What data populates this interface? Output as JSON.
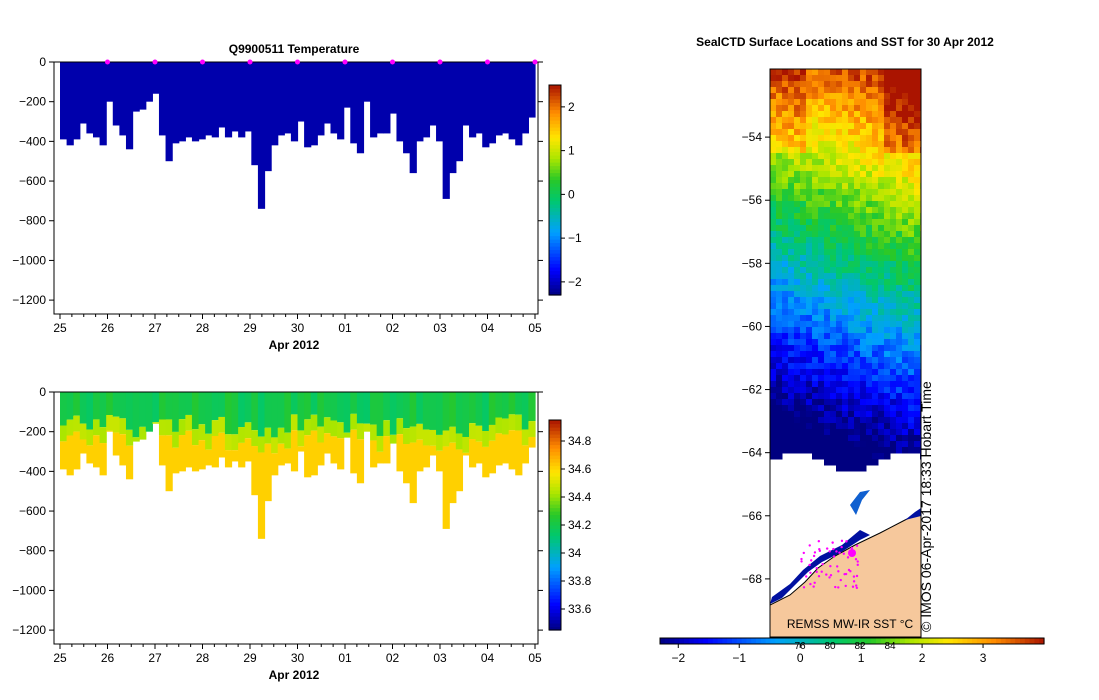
{
  "chart_data": [
    {
      "type": "profile-section",
      "id": "temperature",
      "title": "Q9900511  Temperature",
      "xlabel": "Apr 2012",
      "ylabel": "",
      "x_tick_labels": [
        "25",
        "26",
        "27",
        "28",
        "29",
        "30",
        "01",
        "02",
        "03",
        "04",
        "05"
      ],
      "x_range_days": [
        0,
        10
      ],
      "ylim": [
        -1270,
        0
      ],
      "y_ticks": [
        0,
        -200,
        -400,
        -600,
        -800,
        -1000,
        -1200
      ],
      "grid": false,
      "colorbar": {
        "range": [
          -2.3,
          2.5
        ],
        "ticks": [
          -2,
          -1,
          0,
          1,
          2
        ]
      },
      "surface_marker_days": [
        1,
        2,
        3,
        4,
        5,
        6,
        7,
        8,
        9,
        10
      ],
      "surface_marker_color": "#ff00ff",
      "profile_depths": [
        390,
        420,
        390,
        310,
        360,
        380,
        420,
        200,
        320,
        370,
        440,
        250,
        240,
        200,
        160,
        370,
        500,
        410,
        400,
        380,
        400,
        390,
        370,
        380,
        330,
        380,
        350,
        380,
        350,
        520,
        740,
        550,
        420,
        370,
        360,
        400,
        300,
        430,
        420,
        370,
        310,
        360,
        390,
        230,
        410,
        460,
        200,
        380,
        360,
        360,
        260,
        400,
        460,
        560,
        400,
        380,
        320,
        400,
        690,
        560,
        500,
        320,
        380,
        360,
        430,
        410,
        370,
        360,
        390,
        420,
        360,
        280
      ],
      "deep_value": -2.2,
      "surface_value": -2.1
    },
    {
      "type": "profile-section",
      "id": "salinity",
      "title": "",
      "xlabel": "Apr 2012",
      "ylabel": "",
      "x_tick_labels": [
        "25",
        "26",
        "27",
        "28",
        "29",
        "30",
        "01",
        "02",
        "03",
        "04",
        "05"
      ],
      "x_range_days": [
        0,
        10
      ],
      "ylim": [
        -1270,
        0
      ],
      "y_ticks": [
        0,
        -200,
        -400,
        -600,
        -800,
        -1000,
        -1200
      ],
      "grid": false,
      "colorbar": {
        "range": [
          33.45,
          34.95
        ],
        "ticks": [
          33.6,
          33.8,
          34,
          34.2,
          34.4,
          34.6,
          34.8
        ]
      },
      "surface_value": 34.2,
      "mid_value": 34.45,
      "deep_value": 34.62
    },
    {
      "type": "map",
      "id": "sst-map",
      "title": "SealCTD Surface Locations and SST for 30 Apr 2012",
      "lat_range": [
        -70,
        -52
      ],
      "lat_ticks": [
        -54,
        -56,
        -58,
        -60,
        -62,
        -64,
        -66,
        -68
      ],
      "sst_range": [
        -2.3,
        4
      ],
      "colorbar_ticks": [
        -2,
        -1,
        0,
        1,
        2,
        3
      ],
      "colorbar_minor_labels": [
        "76",
        "80",
        "82",
        "84"
      ],
      "land_color": "#f6c89c",
      "track_color": "#ff00ff",
      "source_label": "REMSS MW-IR SST °C",
      "credit": "© IMOS 06-Apr-2017 18:33 Hobart Time"
    }
  ]
}
